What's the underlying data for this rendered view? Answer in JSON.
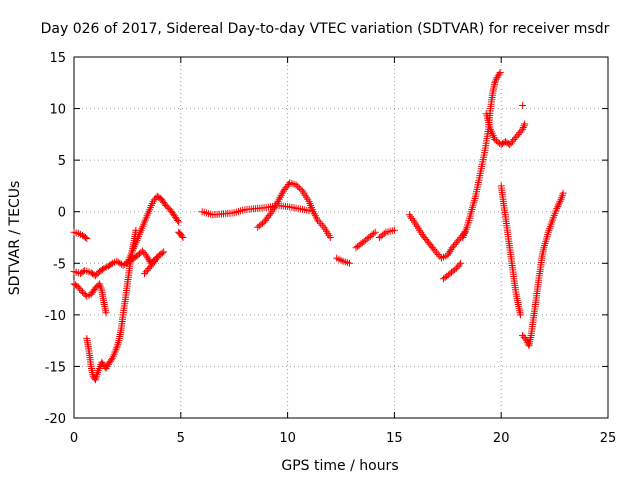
{
  "chart_data": {
    "type": "scatter",
    "title": "Day 026 of 2017, Sidereal Day-to-day VTEC variation (SDTVAR) for receiver msdr",
    "xlabel": "GPS time / hours",
    "ylabel": "SDTVAR / TECUs",
    "xlim": [
      0,
      25
    ],
    "ylim": [
      -20,
      15
    ],
    "x_ticks": [
      0,
      5,
      10,
      15,
      20,
      25
    ],
    "y_ticks": [
      -20,
      -15,
      -10,
      -5,
      0,
      5,
      10,
      15
    ],
    "x_tick_labels": [
      "0",
      "5",
      "10",
      "15",
      "20",
      "25"
    ],
    "y_tick_labels": [
      "-20",
      "-15",
      "-10",
      "-5",
      "0",
      "5",
      "10",
      "15"
    ],
    "grid": true,
    "marker": "plus",
    "color": "#ff0000",
    "segments": [
      [
        [
          0.0,
          -2.0
        ],
        [
          0.2,
          -2.1
        ],
        [
          0.4,
          -2.3
        ],
        [
          0.6,
          -2.6
        ]
      ],
      [
        [
          0.0,
          -5.8
        ],
        [
          0.3,
          -6.0
        ],
        [
          0.5,
          -5.7
        ],
        [
          0.8,
          -5.9
        ],
        [
          1.0,
          -6.2
        ],
        [
          1.2,
          -5.8
        ],
        [
          1.4,
          -5.5
        ],
        [
          1.6,
          -5.3
        ],
        [
          1.8,
          -5.0
        ],
        [
          2.0,
          -4.8
        ],
        [
          2.3,
          -5.2
        ],
        [
          2.6,
          -4.8
        ],
        [
          2.8,
          -4.5
        ],
        [
          3.0,
          -4.2
        ],
        [
          3.2,
          -3.8
        ],
        [
          3.4,
          -4.3
        ],
        [
          3.6,
          -5.0
        ],
        [
          3.8,
          -4.6
        ],
        [
          4.0,
          -4.2
        ],
        [
          4.2,
          -3.9
        ]
      ],
      [
        [
          0.0,
          -7.0
        ],
        [
          0.2,
          -7.3
        ],
        [
          0.4,
          -7.8
        ],
        [
          0.6,
          -8.2
        ],
        [
          0.8,
          -8.0
        ],
        [
          1.0,
          -7.4
        ],
        [
          1.2,
          -7.0
        ],
        [
          1.3,
          -7.6
        ],
        [
          1.4,
          -8.8
        ],
        [
          1.5,
          -9.8
        ]
      ],
      [
        [
          0.6,
          -12.3
        ],
        [
          0.7,
          -13.5
        ],
        [
          0.8,
          -15.0
        ],
        [
          0.9,
          -16.0
        ],
        [
          1.0,
          -16.3
        ],
        [
          1.1,
          -15.6
        ],
        [
          1.3,
          -14.6
        ],
        [
          1.5,
          -15.2
        ],
        [
          1.6,
          -14.8
        ],
        [
          1.8,
          -14.2
        ],
        [
          2.0,
          -13.2
        ],
        [
          2.1,
          -12.5
        ],
        [
          2.2,
          -11.5
        ],
        [
          2.3,
          -10.0
        ],
        [
          2.4,
          -8.5
        ],
        [
          2.5,
          -7.0
        ],
        [
          2.6,
          -5.5
        ],
        [
          2.7,
          -4.0
        ],
        [
          2.8,
          -3.0
        ],
        [
          2.9,
          -1.8
        ]
      ],
      [
        [
          2.5,
          -5.0
        ],
        [
          2.7,
          -4.0
        ],
        [
          2.9,
          -3.0
        ],
        [
          3.1,
          -2.0
        ],
        [
          3.3,
          -1.0
        ],
        [
          3.5,
          0.0
        ],
        [
          3.7,
          1.0
        ],
        [
          3.9,
          1.5
        ],
        [
          4.1,
          1.2
        ],
        [
          4.3,
          0.6
        ],
        [
          4.5,
          0.2
        ],
        [
          4.7,
          -0.4
        ],
        [
          4.9,
          -1.0
        ]
      ],
      [
        [
          4.9,
          -2.0
        ],
        [
          5.0,
          -2.2
        ],
        [
          5.1,
          -2.5
        ]
      ],
      [
        [
          3.3,
          -6.0
        ],
        [
          3.5,
          -5.5
        ],
        [
          3.7,
          -5.0
        ],
        [
          3.9,
          -4.5
        ]
      ],
      [
        [
          6.0,
          0.0
        ],
        [
          6.5,
          -0.3
        ],
        [
          7.0,
          -0.2
        ],
        [
          7.5,
          -0.1
        ],
        [
          8.0,
          0.2
        ],
        [
          8.5,
          0.3
        ],
        [
          9.0,
          0.4
        ],
        [
          9.5,
          0.6
        ],
        [
          10.0,
          0.5
        ],
        [
          10.5,
          0.3
        ],
        [
          11.0,
          0.1
        ]
      ],
      [
        [
          8.6,
          -1.5
        ],
        [
          8.9,
          -1.0
        ],
        [
          9.2,
          -0.2
        ],
        [
          9.5,
          0.8
        ],
        [
          9.8,
          2.0
        ],
        [
          10.1,
          2.8
        ],
        [
          10.4,
          2.6
        ],
        [
          10.7,
          2.0
        ],
        [
          11.0,
          1.0
        ],
        [
          11.2,
          0.0
        ],
        [
          11.4,
          -0.8
        ],
        [
          11.7,
          -1.5
        ],
        [
          12.0,
          -2.5
        ]
      ],
      [
        [
          12.3,
          -4.5
        ],
        [
          12.6,
          -4.8
        ],
        [
          12.9,
          -5.0
        ]
      ],
      [
        [
          13.2,
          -3.5
        ],
        [
          13.5,
          -3.0
        ],
        [
          13.8,
          -2.5
        ],
        [
          14.1,
          -2.0
        ]
      ],
      [
        [
          14.3,
          -2.5
        ],
        [
          14.6,
          -2.0
        ],
        [
          15.0,
          -1.8
        ]
      ],
      [
        [
          15.7,
          -0.3
        ],
        [
          16.0,
          -1.2
        ],
        [
          16.3,
          -2.2
        ],
        [
          16.6,
          -3.0
        ],
        [
          16.9,
          -3.8
        ],
        [
          17.2,
          -4.5
        ],
        [
          17.5,
          -4.2
        ],
        [
          17.7,
          -3.5
        ],
        [
          17.9,
          -3.0
        ],
        [
          18.1,
          -2.5
        ],
        [
          18.3,
          -2.0
        ]
      ],
      [
        [
          17.3,
          -6.5
        ],
        [
          17.6,
          -6.0
        ],
        [
          17.9,
          -5.5
        ],
        [
          18.1,
          -5.0
        ]
      ],
      [
        [
          18.2,
          -2.5
        ],
        [
          18.4,
          -1.5
        ],
        [
          18.6,
          0.0
        ],
        [
          18.8,
          1.5
        ],
        [
          19.0,
          3.5
        ],
        [
          19.2,
          5.5
        ],
        [
          19.4,
          8.0
        ],
        [
          19.5,
          10.0
        ],
        [
          19.6,
          11.5
        ],
        [
          19.7,
          12.5
        ],
        [
          19.8,
          13.0
        ],
        [
          19.95,
          13.5
        ]
      ],
      [
        [
          19.3,
          9.5
        ],
        [
          19.5,
          8.0
        ],
        [
          19.7,
          7.0
        ],
        [
          20.0,
          6.5
        ],
        [
          20.2,
          6.8
        ],
        [
          20.4,
          6.5
        ],
        [
          20.6,
          7.0
        ],
        [
          20.8,
          7.5
        ],
        [
          21.0,
          8.0
        ],
        [
          21.1,
          8.5
        ]
      ],
      [
        [
          21.0,
          10.3
        ]
      ],
      [
        [
          20.0,
          2.5
        ],
        [
          20.1,
          1.0
        ],
        [
          20.2,
          -0.5
        ],
        [
          20.3,
          -2.0
        ],
        [
          20.4,
          -3.5
        ],
        [
          20.5,
          -5.0
        ],
        [
          20.6,
          -6.5
        ],
        [
          20.7,
          -8.0
        ],
        [
          20.8,
          -9.0
        ],
        [
          20.9,
          -10.0
        ]
      ],
      [
        [
          21.0,
          -12.0
        ],
        [
          21.2,
          -12.5
        ],
        [
          21.3,
          -13.0
        ],
        [
          21.4,
          -12.0
        ],
        [
          21.5,
          -10.5
        ],
        [
          21.6,
          -9.0
        ],
        [
          21.7,
          -7.5
        ],
        [
          21.8,
          -6.0
        ],
        [
          21.9,
          -4.5
        ],
        [
          22.0,
          -3.5
        ],
        [
          22.2,
          -2.0
        ],
        [
          22.4,
          -0.8
        ],
        [
          22.6,
          0.3
        ],
        [
          22.8,
          1.2
        ],
        [
          22.9,
          1.8
        ]
      ]
    ]
  }
}
